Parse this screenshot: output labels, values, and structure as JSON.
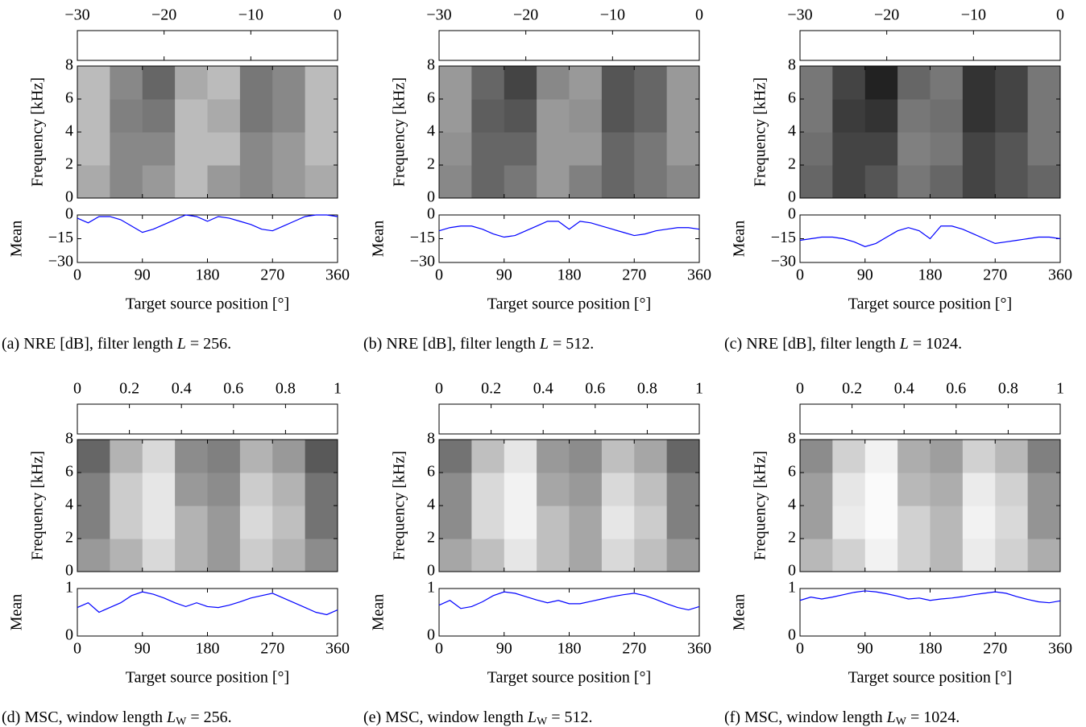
{
  "chart_data": [
    {
      "type": "heatmap",
      "caption": [
        "(a) NRE [dB], filter length ",
        "L",
        " = 256."
      ],
      "colorbar": {
        "lim": [
          -30,
          0
        ],
        "ticks": [
          {
            "value": -30,
            "label": "−30"
          },
          {
            "value": -20,
            "label": "−20"
          },
          {
            "value": -10,
            "label": "−10"
          },
          0
        ]
      },
      "ylabel": "Frequency [kHz]",
      "ylim": [
        0,
        8
      ],
      "yticks": [
        0,
        2,
        4,
        6,
        8
      ],
      "xbins": [
        0,
        45,
        90,
        135,
        180,
        225,
        270,
        315,
        360
      ],
      "ybins": [
        0,
        2,
        4,
        6,
        8
      ],
      "z": [
        [
          -10,
          -14,
          -12,
          -8,
          -12,
          -14,
          -12,
          -10
        ],
        [
          -8,
          -14,
          -14,
          -8,
          -8,
          -14,
          -12,
          -8
        ],
        [
          -8,
          -15,
          -16,
          -8,
          -10,
          -16,
          -14,
          -8
        ],
        [
          -8,
          -14,
          -18,
          -10,
          -8,
          -16,
          -14,
          -8
        ]
      ],
      "mean": {
        "ylabel": "Mean",
        "ylim": [
          -30,
          0
        ],
        "yticks": [
          {
            "value": -30,
            "label": "−30"
          },
          {
            "value": -15,
            "label": "−15"
          },
          0
        ],
        "color": "#0000ff",
        "x": [
          0,
          15,
          30,
          45,
          60,
          75,
          90,
          105,
          120,
          135,
          150,
          165,
          180,
          195,
          210,
          225,
          240,
          255,
          270,
          285,
          300,
          315,
          330,
          345,
          360
        ],
        "values": [
          -2,
          -5,
          -1,
          -1,
          -3,
          -7,
          -11,
          -9,
          -6,
          -3,
          0,
          -1,
          -4,
          -1,
          -2,
          -4,
          -6,
          -9,
          -10,
          -7,
          -4,
          -1,
          0,
          0,
          -1
        ]
      },
      "xlabel": "Target source position [°]",
      "xlim": [
        0,
        360
      ],
      "xticks": [
        0,
        90,
        180,
        270,
        360
      ]
    },
    {
      "type": "heatmap",
      "caption": [
        "(b) NRE [dB], filter length ",
        "L",
        " = 512."
      ],
      "colorbar": {
        "lim": [
          -30,
          0
        ],
        "ticks": [
          {
            "value": -30,
            "label": "−30"
          },
          {
            "value": -20,
            "label": "−20"
          },
          {
            "value": -10,
            "label": "−10"
          },
          0
        ]
      },
      "ylabel": "Frequency [kHz]",
      "ylim": [
        0,
        8
      ],
      "yticks": [
        0,
        2,
        4,
        6,
        8
      ],
      "xbins": [
        0,
        45,
        90,
        135,
        180,
        225,
        270,
        315,
        360
      ],
      "ybins": [
        0,
        2,
        4,
        6,
        8
      ],
      "z": [
        [
          -14,
          -18,
          -16,
          -12,
          -15,
          -18,
          -16,
          -14
        ],
        [
          -13,
          -18,
          -18,
          -12,
          -12,
          -18,
          -16,
          -12
        ],
        [
          -12,
          -19,
          -20,
          -12,
          -13,
          -20,
          -18,
          -12
        ],
        [
          -12,
          -18,
          -22,
          -14,
          -12,
          -20,
          -18,
          -12
        ]
      ],
      "mean": {
        "ylabel": "Mean",
        "ylim": [
          -30,
          0
        ],
        "yticks": [
          {
            "value": -30,
            "label": "−30"
          },
          {
            "value": -15,
            "label": "−15"
          },
          0
        ],
        "color": "#0000ff",
        "x": [
          0,
          15,
          30,
          45,
          60,
          75,
          90,
          105,
          120,
          135,
          150,
          165,
          180,
          195,
          210,
          225,
          240,
          255,
          270,
          285,
          300,
          315,
          330,
          345,
          360
        ],
        "values": [
          -10,
          -8,
          -7,
          -7,
          -9,
          -12,
          -14,
          -13,
          -10,
          -7,
          -4,
          -4,
          -9,
          -4,
          -5,
          -7,
          -9,
          -11,
          -13,
          -12,
          -10,
          -9,
          -8,
          -8,
          -9
        ]
      },
      "xlabel": "Target source position [°]",
      "xlim": [
        0,
        360
      ],
      "xticks": [
        0,
        90,
        180,
        270,
        360
      ]
    },
    {
      "type": "heatmap",
      "caption": [
        "(c) NRE [dB], filter length ",
        "L",
        " = 1024."
      ],
      "colorbar": {
        "lim": [
          -30,
          0
        ],
        "ticks": [
          {
            "value": -30,
            "label": "−30"
          },
          {
            "value": -20,
            "label": "−20"
          },
          {
            "value": -10,
            "label": "−10"
          },
          0
        ]
      },
      "ylabel": "Frequency [kHz]",
      "ylim": [
        0,
        8
      ],
      "yticks": [
        0,
        2,
        4,
        6,
        8
      ],
      "xbins": [
        0,
        45,
        90,
        135,
        180,
        225,
        270,
        315,
        360
      ],
      "ybins": [
        0,
        2,
        4,
        6,
        8
      ],
      "z": [
        [
          -18,
          -22,
          -20,
          -16,
          -18,
          -22,
          -20,
          -18
        ],
        [
          -17,
          -22,
          -22,
          -15,
          -16,
          -22,
          -20,
          -16
        ],
        [
          -16,
          -23,
          -24,
          -16,
          -17,
          -24,
          -22,
          -16
        ],
        [
          -16,
          -22,
          -26,
          -18,
          -16,
          -24,
          -22,
          -16
        ]
      ],
      "mean": {
        "ylabel": "Mean",
        "ylim": [
          -30,
          0
        ],
        "yticks": [
          {
            "value": -30,
            "label": "−30"
          },
          {
            "value": -15,
            "label": "−15"
          },
          0
        ],
        "color": "#0000ff",
        "x": [
          0,
          15,
          30,
          45,
          60,
          75,
          90,
          105,
          120,
          135,
          150,
          165,
          180,
          195,
          210,
          225,
          240,
          255,
          270,
          285,
          300,
          315,
          330,
          345,
          360
        ],
        "values": [
          -16,
          -15,
          -14,
          -14,
          -15,
          -17,
          -20,
          -18,
          -14,
          -10,
          -8,
          -10,
          -15,
          -7,
          -7,
          -9,
          -12,
          -15,
          -18,
          -17,
          -16,
          -15,
          -14,
          -14,
          -15
        ]
      },
      "xlabel": "Target source position [°]",
      "xlim": [
        0,
        360
      ],
      "xticks": [
        0,
        90,
        180,
        270,
        360
      ]
    },
    {
      "type": "heatmap",
      "caption": [
        "(d) MSC, window length ",
        "L",
        "W",
        " = 256."
      ],
      "colorbar": {
        "lim": [
          0,
          1
        ],
        "ticks": [
          0,
          0.2,
          0.4,
          0.6,
          0.8,
          1
        ]
      },
      "ylabel": "Frequency [kHz]",
      "ylim": [
        0,
        8
      ],
      "yticks": [
        0,
        2,
        4,
        6,
        8
      ],
      "xbins": [
        0,
        45,
        90,
        135,
        180,
        225,
        270,
        315,
        360
      ],
      "ybins": [
        0,
        2,
        4,
        6,
        8
      ],
      "z": [
        [
          0.6,
          0.7,
          0.85,
          0.7,
          0.6,
          0.8,
          0.7,
          0.55
        ],
        [
          0.5,
          0.8,
          0.9,
          0.7,
          0.6,
          0.85,
          0.75,
          0.45
        ],
        [
          0.5,
          0.8,
          0.9,
          0.6,
          0.55,
          0.8,
          0.7,
          0.45
        ],
        [
          0.4,
          0.7,
          0.85,
          0.55,
          0.5,
          0.7,
          0.6,
          0.35
        ]
      ],
      "mean": {
        "ylabel": "Mean",
        "ylim": [
          0,
          1
        ],
        "yticks": [
          0,
          1
        ],
        "color": "#0000ff",
        "x": [
          0,
          15,
          30,
          45,
          60,
          75,
          90,
          105,
          120,
          135,
          150,
          165,
          180,
          195,
          210,
          225,
          240,
          255,
          270,
          285,
          300,
          315,
          330,
          345,
          360
        ],
        "values": [
          0.6,
          0.7,
          0.5,
          0.6,
          0.7,
          0.85,
          0.93,
          0.88,
          0.8,
          0.7,
          0.62,
          0.7,
          0.62,
          0.6,
          0.65,
          0.72,
          0.8,
          0.85,
          0.9,
          0.8,
          0.7,
          0.6,
          0.5,
          0.45,
          0.55
        ]
      },
      "xlabel": "Target source position [°]",
      "xlim": [
        0,
        360
      ],
      "xticks": [
        0,
        90,
        180,
        270,
        360
      ]
    },
    {
      "type": "heatmap",
      "caption": [
        "(e) MSC, window length ",
        "L",
        "W",
        " = 512."
      ],
      "colorbar": {
        "lim": [
          0,
          1
        ],
        "ticks": [
          0,
          0.2,
          0.4,
          0.6,
          0.8,
          1
        ]
      },
      "ylabel": "Frequency [kHz]",
      "ylim": [
        0,
        8
      ],
      "yticks": [
        0,
        2,
        4,
        6,
        8
      ],
      "xbins": [
        0,
        45,
        90,
        135,
        180,
        225,
        270,
        315,
        360
      ],
      "ybins": [
        0,
        2,
        4,
        6,
        8
      ],
      "z": [
        [
          0.65,
          0.75,
          0.9,
          0.75,
          0.65,
          0.85,
          0.75,
          0.6
        ],
        [
          0.55,
          0.85,
          0.95,
          0.75,
          0.65,
          0.9,
          0.8,
          0.5
        ],
        [
          0.55,
          0.85,
          0.95,
          0.65,
          0.6,
          0.85,
          0.75,
          0.5
        ],
        [
          0.45,
          0.75,
          0.9,
          0.6,
          0.55,
          0.75,
          0.65,
          0.4
        ]
      ],
      "mean": {
        "ylabel": "Mean",
        "ylim": [
          0,
          1
        ],
        "yticks": [
          0,
          1
        ],
        "color": "#0000ff",
        "x": [
          0,
          15,
          30,
          45,
          60,
          75,
          90,
          105,
          120,
          135,
          150,
          165,
          180,
          195,
          210,
          225,
          240,
          255,
          270,
          285,
          300,
          315,
          330,
          345,
          360
        ],
        "values": [
          0.65,
          0.75,
          0.58,
          0.62,
          0.72,
          0.85,
          0.93,
          0.9,
          0.83,
          0.76,
          0.7,
          0.75,
          0.68,
          0.68,
          0.73,
          0.78,
          0.83,
          0.87,
          0.9,
          0.85,
          0.77,
          0.68,
          0.6,
          0.55,
          0.62
        ]
      },
      "xlabel": "Target source position [°]",
      "xlim": [
        0,
        360
      ],
      "xticks": [
        0,
        90,
        180,
        270,
        360
      ]
    },
    {
      "type": "heatmap",
      "caption": [
        "(f) MSC, window length ",
        "L",
        "W",
        " = 1024."
      ],
      "colorbar": {
        "lim": [
          0,
          1
        ],
        "ticks": [
          0,
          0.2,
          0.4,
          0.6,
          0.8,
          1
        ]
      },
      "ylabel": "Frequency [kHz]",
      "ylim": [
        0,
        8
      ],
      "yticks": [
        0,
        2,
        4,
        6,
        8
      ],
      "xbins": [
        0,
        45,
        90,
        135,
        180,
        225,
        270,
        315,
        360
      ],
      "ybins": [
        0,
        2,
        4,
        6,
        8
      ],
      "z": [
        [
          0.72,
          0.82,
          0.95,
          0.82,
          0.72,
          0.92,
          0.82,
          0.68
        ],
        [
          0.62,
          0.92,
          0.98,
          0.82,
          0.72,
          0.95,
          0.85,
          0.58
        ],
        [
          0.62,
          0.9,
          0.98,
          0.72,
          0.68,
          0.92,
          0.82,
          0.58
        ],
        [
          0.55,
          0.82,
          0.95,
          0.68,
          0.62,
          0.82,
          0.72,
          0.5
        ]
      ],
      "mean": {
        "ylabel": "Mean",
        "ylim": [
          0,
          1
        ],
        "yticks": [
          0,
          1
        ],
        "color": "#0000ff",
        "x": [
          0,
          15,
          30,
          45,
          60,
          75,
          90,
          105,
          120,
          135,
          150,
          165,
          180,
          195,
          210,
          225,
          240,
          255,
          270,
          285,
          300,
          315,
          330,
          345,
          360
        ],
        "values": [
          0.75,
          0.82,
          0.78,
          0.82,
          0.87,
          0.92,
          0.95,
          0.93,
          0.89,
          0.84,
          0.78,
          0.8,
          0.75,
          0.78,
          0.8,
          0.83,
          0.87,
          0.9,
          0.93,
          0.9,
          0.83,
          0.77,
          0.72,
          0.7,
          0.74
        ]
      },
      "xlabel": "Target source position [°]",
      "xlim": [
        0,
        360
      ],
      "xticks": [
        0,
        90,
        180,
        270,
        360
      ]
    }
  ]
}
